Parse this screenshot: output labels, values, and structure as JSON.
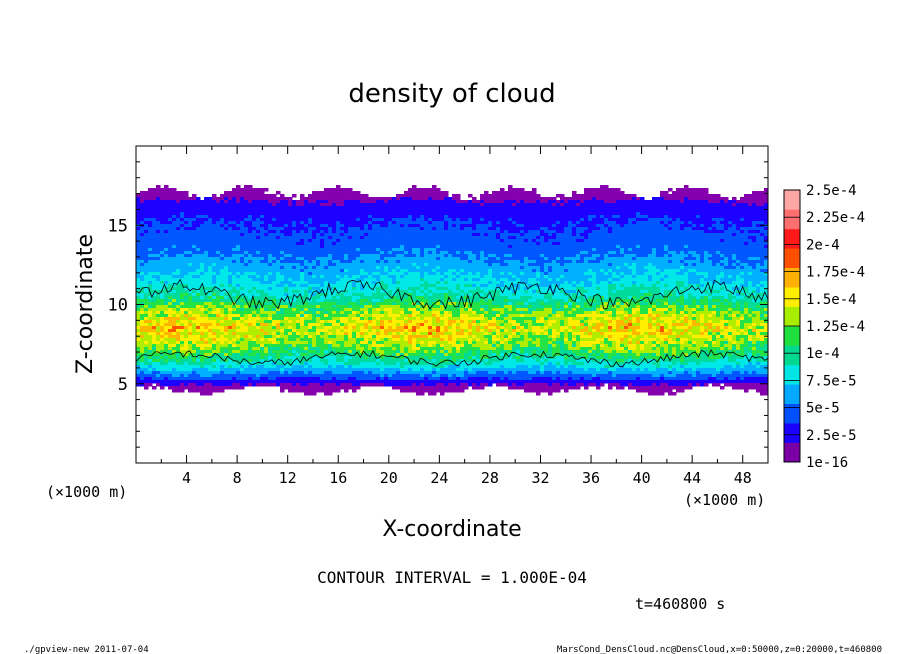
{
  "chart_data": {
    "type": "heatmap",
    "title": "density of cloud",
    "xlabel": "X-coordinate",
    "ylabel": "Z-coordinate",
    "x_unit": "(×1000 m)",
    "y_unit": "(×1000 m)",
    "xlim": [
      0,
      50
    ],
    "ylim": [
      0,
      20
    ],
    "x_ticks": [
      4,
      8,
      12,
      16,
      20,
      24,
      28,
      32,
      36,
      40,
      44,
      48
    ],
    "y_ticks": [
      5,
      10,
      15
    ],
    "colorbar_levels": [
      "1e-16",
      "2.5e-5",
      "5e-5",
      "7.5e-5",
      "1e-4",
      "1.25e-4",
      "1.5e-4",
      "1.75e-4",
      "2e-4",
      "2.25e-4",
      "2.5e-4"
    ],
    "colorbar_colors": [
      "#7a00a6",
      "#1a00ff",
      "#0050ff",
      "#00a8ff",
      "#00e6e6",
      "#00d890",
      "#20e040",
      "#a8ec00",
      "#ffee00",
      "#ffb000",
      "#ff5000",
      "#ff1a1a",
      "#ff6f6f",
      "#ffa7a7"
    ],
    "contour_interval": "CONTOUR INTERVAL = 1.000E-04",
    "contour_level": 0.0001,
    "field_profile": [
      {
        "z": 4.6,
        "value": 1e-05
      },
      {
        "z": 5.0,
        "value": 2e-05
      },
      {
        "z": 5.5,
        "value": 5e-05
      },
      {
        "z": 6.3,
        "value": 9.5e-05
      },
      {
        "z": 7.5,
        "value": 0.00014
      },
      {
        "z": 8.5,
        "value": 0.000165
      },
      {
        "z": 9.5,
        "value": 0.00014
      },
      {
        "z": 10.5,
        "value": 0.0001
      },
      {
        "z": 11.5,
        "value": 8e-05
      },
      {
        "z": 13.5,
        "value": 5e-05
      },
      {
        "z": 15.5,
        "value": 3.5e-05
      },
      {
        "z": 16.5,
        "value": 2e-05
      },
      {
        "z": 17.1,
        "value": 1e-05
      }
    ],
    "time_label": "t=460800 s",
    "grid": false
  },
  "footer": {
    "left": "./gpview-new  2011-07-04",
    "right": "MarsCond_DensCloud.nc@DensCloud,x=0:50000,z=0:20000,t=460800"
  }
}
